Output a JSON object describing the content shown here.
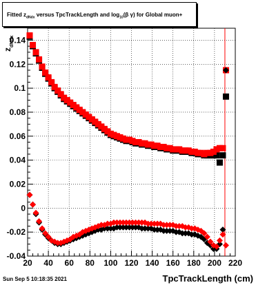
{
  "title": {
    "prefix": "Fitted  z",
    "z_sub": "dNdx",
    "middle": "  versus TpcTrackLength and log",
    "log_sub": "10",
    "beta_gamma": "(β  γ)",
    "suffix": " for Global muon+"
  },
  "datestamp": "Sun Sep  5 10:18:35 2021",
  "chart_data": {
    "type": "scatter",
    "title": "Fitted z_dNdx versus TpcTrackLength and log10(β γ) for Global muon+",
    "xlabel": "TpcTrackLength (cm)",
    "ylabel": "z_dNdx",
    "xlim": [
      20,
      220
    ],
    "ylim": [
      -0.04,
      0.15
    ],
    "xticks": [
      20,
      40,
      60,
      80,
      100,
      120,
      140,
      160,
      180,
      200,
      220
    ],
    "yticks": [
      -0.04,
      -0.02,
      0,
      0.02,
      0.04,
      0.06,
      0.08,
      0.1,
      0.12,
      0.14
    ],
    "grid": true,
    "vertical_line_x": 210,
    "series": [
      {
        "marker": "square",
        "color": "#000000",
        "x": [
          22,
          25,
          28,
          31,
          34,
          37,
          40,
          43,
          46,
          49,
          52,
          55,
          58,
          61,
          64,
          67,
          70,
          73,
          76,
          79,
          82,
          85,
          88,
          91,
          94,
          97,
          100,
          103,
          106,
          109,
          112,
          115,
          118,
          121,
          124,
          127,
          130,
          133,
          136,
          139,
          142,
          145,
          148,
          151,
          154,
          157,
          160,
          163,
          166,
          169,
          172,
          175,
          178,
          181,
          184,
          187,
          190,
          193,
          196,
          199,
          202,
          205,
          208,
          211
        ],
        "y": [
          0.143,
          0.135,
          0.129,
          0.123,
          0.117,
          0.112,
          0.108,
          0.104,
          0.1,
          0.097,
          0.094,
          0.091,
          0.089,
          0.087,
          0.085,
          0.083,
          0.081,
          0.079,
          0.077,
          0.075,
          0.073,
          0.071,
          0.069,
          0.067,
          0.065,
          0.063,
          0.061,
          0.06,
          0.059,
          0.058,
          0.057,
          0.056,
          0.056,
          0.055,
          0.054,
          0.054,
          0.053,
          0.053,
          0.052,
          0.052,
          0.051,
          0.051,
          0.05,
          0.05,
          0.049,
          0.049,
          0.048,
          0.048,
          0.048,
          0.047,
          0.047,
          0.047,
          0.046,
          0.046,
          0.045,
          0.045,
          0.044,
          0.044,
          0.044,
          0.044,
          0.044,
          0.038,
          0.044,
          0.093
        ]
      },
      {
        "marker": "square",
        "color": "#ff0000",
        "x": [
          22,
          25,
          28,
          31,
          34,
          37,
          40,
          43,
          46,
          49,
          52,
          55,
          58,
          61,
          64,
          67,
          70,
          73,
          76,
          79,
          82,
          85,
          88,
          91,
          94,
          97,
          100,
          103,
          106,
          109,
          112,
          115,
          118,
          121,
          124,
          127,
          130,
          133,
          136,
          139,
          142,
          145,
          148,
          151,
          154,
          157,
          160,
          163,
          166,
          169,
          172,
          175,
          178,
          181,
          184,
          187,
          190,
          193,
          196,
          199,
          202,
          205,
          208,
          211
        ],
        "y": [
          0.144,
          0.136,
          0.13,
          0.124,
          0.118,
          0.113,
          0.109,
          0.105,
          0.101,
          0.098,
          0.095,
          0.092,
          0.09,
          0.088,
          0.086,
          0.084,
          0.082,
          0.08,
          0.078,
          0.076,
          0.074,
          0.072,
          0.07,
          0.068,
          0.066,
          0.064,
          0.062,
          0.061,
          0.06,
          0.059,
          0.058,
          0.057,
          0.057,
          0.056,
          0.055,
          0.055,
          0.054,
          0.054,
          0.053,
          0.053,
          0.052,
          0.052,
          0.051,
          0.051,
          0.05,
          0.05,
          0.049,
          0.049,
          0.049,
          0.048,
          0.048,
          0.048,
          0.047,
          0.047,
          0.046,
          0.046,
          0.045,
          0.046,
          0.046,
          0.047,
          0.049,
          0.05,
          0.05,
          0.115
        ]
      },
      {
        "marker": "diamond",
        "color": "#000000",
        "x": [
          22,
          25,
          28,
          31,
          34,
          37,
          40,
          43,
          46,
          49,
          52,
          55,
          58,
          61,
          64,
          67,
          70,
          73,
          76,
          79,
          82,
          85,
          88,
          91,
          94,
          97,
          100,
          103,
          106,
          109,
          112,
          115,
          118,
          121,
          124,
          127,
          130,
          133,
          136,
          139,
          142,
          145,
          148,
          151,
          154,
          157,
          160,
          163,
          166,
          169,
          172,
          175,
          178,
          181,
          184,
          187,
          190,
          193,
          196,
          199,
          202,
          205,
          208,
          211
        ],
        "y": [
          0.011,
          0.003,
          -0.005,
          -0.012,
          -0.018,
          -0.022,
          -0.025,
          -0.027,
          -0.029,
          -0.03,
          -0.03,
          -0.029,
          -0.028,
          -0.027,
          -0.026,
          -0.025,
          -0.024,
          -0.023,
          -0.022,
          -0.021,
          -0.02,
          -0.019,
          -0.018,
          -0.018,
          -0.017,
          -0.017,
          -0.017,
          -0.017,
          -0.016,
          -0.016,
          -0.016,
          -0.016,
          -0.016,
          -0.016,
          -0.016,
          -0.016,
          -0.017,
          -0.017,
          -0.017,
          -0.017,
          -0.018,
          -0.018,
          -0.018,
          -0.019,
          -0.019,
          -0.019,
          -0.019,
          -0.02,
          -0.02,
          -0.021,
          -0.021,
          -0.021,
          -0.022,
          -0.022,
          -0.023,
          -0.024,
          -0.026,
          -0.029,
          -0.031,
          -0.034,
          -0.034,
          -0.03,
          -0.018,
          0.115
        ]
      },
      {
        "marker": "diamond",
        "color": "#ff0000",
        "x": [
          22,
          25,
          28,
          31,
          34,
          37,
          40,
          43,
          46,
          49,
          52,
          55,
          58,
          61,
          64,
          67,
          70,
          73,
          76,
          79,
          82,
          85,
          88,
          91,
          94,
          97,
          100,
          103,
          106,
          109,
          112,
          115,
          118,
          121,
          124,
          127,
          130,
          133,
          136,
          139,
          142,
          145,
          148,
          151,
          154,
          157,
          160,
          163,
          166,
          169,
          172,
          175,
          178,
          181,
          184,
          187,
          190,
          193,
          196,
          199,
          202,
          205,
          208,
          211
        ],
        "y": [
          0.011,
          0.003,
          -0.004,
          -0.011,
          -0.017,
          -0.021,
          -0.024,
          -0.027,
          -0.028,
          -0.029,
          -0.029,
          -0.028,
          -0.027,
          -0.026,
          -0.024,
          -0.023,
          -0.022,
          -0.02,
          -0.019,
          -0.018,
          -0.017,
          -0.016,
          -0.015,
          -0.014,
          -0.014,
          -0.013,
          -0.013,
          -0.012,
          -0.012,
          -0.012,
          -0.012,
          -0.012,
          -0.012,
          -0.012,
          -0.012,
          -0.012,
          -0.012,
          -0.012,
          -0.013,
          -0.013,
          -0.013,
          -0.013,
          -0.013,
          -0.014,
          -0.014,
          -0.014,
          -0.014,
          -0.015,
          -0.015,
          -0.015,
          -0.016,
          -0.016,
          -0.017,
          -0.017,
          -0.018,
          -0.019,
          -0.021,
          -0.024,
          -0.028,
          -0.031,
          -0.032,
          -0.027,
          -0.022,
          -0.031
        ]
      }
    ]
  }
}
